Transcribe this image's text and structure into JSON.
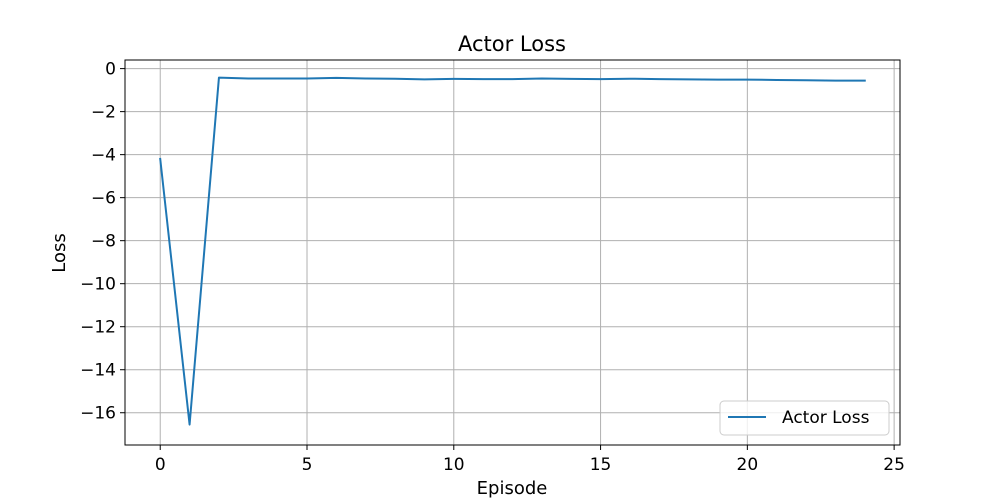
{
  "chart_data": {
    "type": "line",
    "title": "Actor Loss",
    "xlabel": "Episode",
    "ylabel": "Loss",
    "xlim": [
      -1.2,
      25.2
    ],
    "ylim": [
      -17.5,
      0.4
    ],
    "xticks": [
      0,
      5,
      10,
      15,
      20,
      25
    ],
    "yticks": [
      0,
      -2,
      -4,
      -6,
      -8,
      -10,
      -12,
      -14,
      -16
    ],
    "xtick_labels": [
      "0",
      "5",
      "10",
      "15",
      "20",
      "25"
    ],
    "ytick_labels": [
      "0",
      "−2",
      "−4",
      "−6",
      "−8",
      "−10",
      "−12",
      "−14",
      "−16"
    ],
    "grid": true,
    "legend_position": "lower-right",
    "series": [
      {
        "name": "Actor Loss",
        "color": "#1f77b4",
        "x": [
          0,
          1,
          2,
          3,
          4,
          5,
          6,
          7,
          8,
          9,
          10,
          11,
          12,
          13,
          14,
          15,
          16,
          17,
          18,
          19,
          20,
          21,
          22,
          23,
          24
        ],
        "y": [
          -4.2,
          -16.55,
          -0.42,
          -0.46,
          -0.46,
          -0.46,
          -0.43,
          -0.46,
          -0.47,
          -0.5,
          -0.48,
          -0.49,
          -0.49,
          -0.46,
          -0.48,
          -0.49,
          -0.47,
          -0.49,
          -0.5,
          -0.51,
          -0.51,
          -0.53,
          -0.54,
          -0.56,
          -0.56
        ]
      }
    ]
  }
}
